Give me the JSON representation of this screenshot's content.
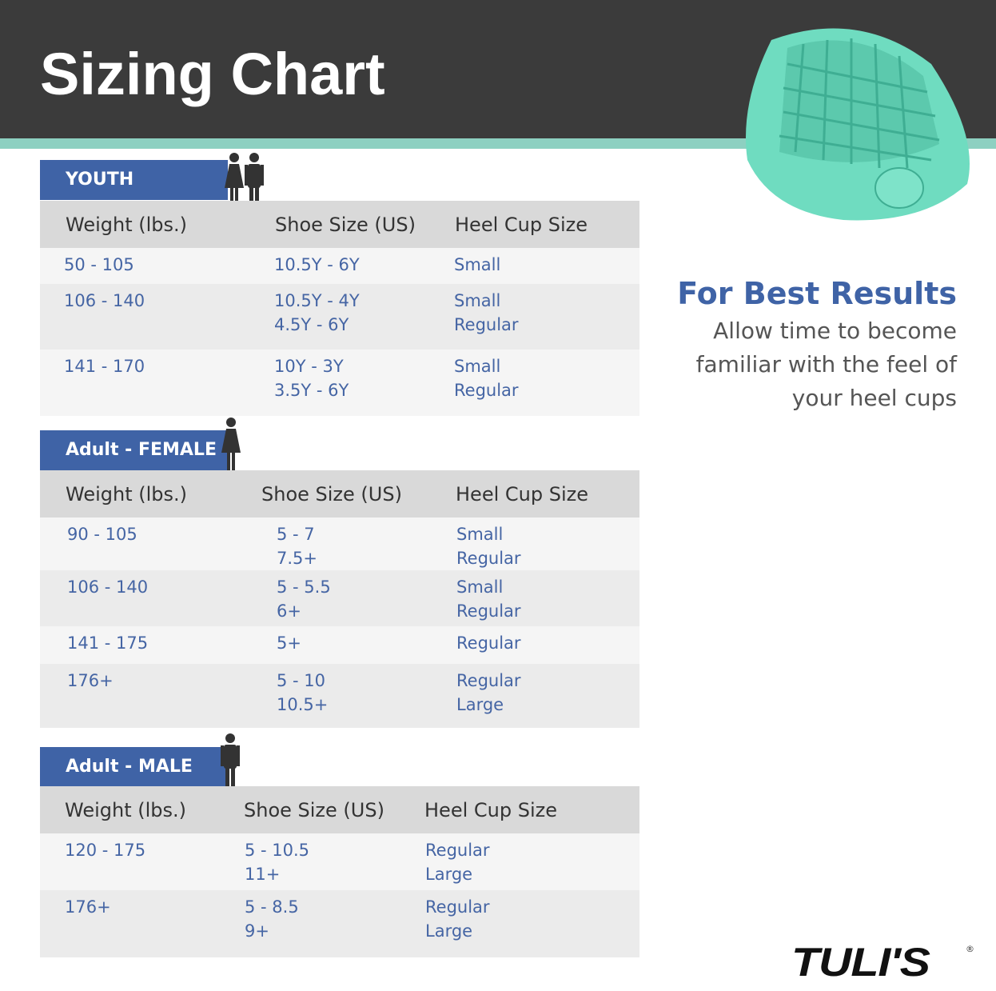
{
  "header": {
    "title": "Sizing Chart"
  },
  "sections": [
    {
      "label": "YOUTH",
      "columns": [
        "Weight (lbs.)",
        "Shoe Size (US)",
        "Heel Cup Size"
      ],
      "rows": [
        [
          [
            "50 - 105"
          ],
          [
            "10.5Y - 6Y"
          ],
          [
            "Small"
          ]
        ],
        [
          [
            "106 - 140"
          ],
          [
            "10.5Y - 4Y",
            "4.5Y - 6Y"
          ],
          [
            "Small",
            "Regular"
          ]
        ],
        [
          [
            "141 - 170"
          ],
          [
            "10Y - 3Y",
            "3.5Y - 6Y"
          ],
          [
            "Small",
            "Regular"
          ]
        ]
      ]
    },
    {
      "label": "Adult - FEMALE",
      "columns": [
        "Weight (lbs.)",
        "Shoe Size (US)",
        "Heel Cup Size"
      ],
      "rows": [
        [
          [
            "90 - 105"
          ],
          [
            "5 - 7",
            "7.5+"
          ],
          [
            "Small",
            "Regular"
          ]
        ],
        [
          [
            "106 - 140"
          ],
          [
            "5 - 5.5",
            "6+"
          ],
          [
            "Small",
            "Regular"
          ]
        ],
        [
          [
            "141 - 175"
          ],
          [
            "5+"
          ],
          [
            "Regular"
          ]
        ],
        [
          [
            "176+"
          ],
          [
            "5 - 10",
            "10.5+"
          ],
          [
            "Regular",
            "Large"
          ]
        ]
      ]
    },
    {
      "label": "Adult - MALE",
      "columns": [
        "Weight (lbs.)",
        "Shoe Size (US)",
        "Heel Cup Size"
      ],
      "rows": [
        [
          [
            "120 - 175"
          ],
          [
            "5 - 10.5",
            "11+"
          ],
          [
            "Regular",
            "Large"
          ]
        ],
        [
          [
            "176+"
          ],
          [
            "5 - 8.5",
            "9+"
          ],
          [
            "Regular",
            "Large"
          ]
        ]
      ]
    }
  ],
  "best_results": {
    "title": "For Best Results",
    "lines": [
      "Allow time to become",
      "familiar with the feel of",
      "your heel cups"
    ]
  },
  "brand": {
    "name": "TULI'S",
    "mark": "®"
  }
}
